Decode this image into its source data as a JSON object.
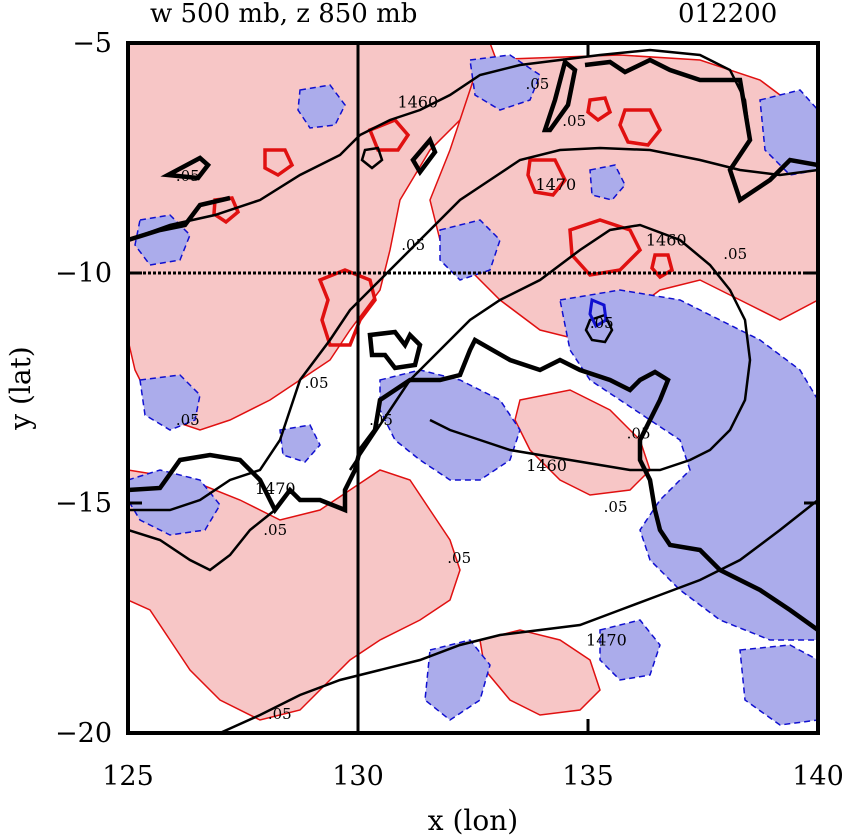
{
  "header": {
    "left_title": "w 500 mb, z 850 mb",
    "right_title": "012200"
  },
  "chart_data": {
    "type": "contour",
    "xlabel": "x (lon)",
    "ylabel": "y (lat)",
    "xlim": [
      125,
      140
    ],
    "ylim": [
      -20,
      -5
    ],
    "x_ticks": [
      125,
      130,
      135,
      140
    ],
    "y_ticks": [
      -5,
      -10,
      -15,
      -20
    ],
    "x_tick_labels": [
      "125",
      "130",
      "135",
      "140"
    ],
    "y_tick_labels": [
      "−5",
      "−10",
      "−15",
      "−20"
    ],
    "reference_lines": {
      "lon": 130,
      "lat": -10
    },
    "colors": {
      "positive_fill": "#f7c6c6",
      "negative_fill": "#abaceb",
      "positive_line": "#e01010",
      "negative_line": "#1010d0",
      "height_line": "#000000"
    },
    "w_contour_labels": [
      {
        "text": ".05",
        "lon": 126.3,
        "lat": -8.0
      },
      {
        "text": ".05",
        "lon": 126.3,
        "lat": -13.3
      },
      {
        "text": ".05",
        "lon": 128.2,
        "lat": -15.7
      },
      {
        "text": ".05",
        "lon": 129.1,
        "lat": -12.5
      },
      {
        "text": ".05",
        "lon": 128.3,
        "lat": -19.7
      },
      {
        "text": ".05",
        "lon": 130.5,
        "lat": -13.3
      },
      {
        "text": ".05",
        "lon": 131.2,
        "lat": -9.5
      },
      {
        "text": ".05",
        "lon": 132.2,
        "lat": -16.3
      },
      {
        "text": ".05",
        "lon": 133.9,
        "lat": -6.0
      },
      {
        "text": ".05",
        "lon": 134.7,
        "lat": -6.8
      },
      {
        "text": ".05",
        "lon": 135.3,
        "lat": -11.2
      },
      {
        "text": ".05",
        "lon": 136.1,
        "lat": -13.6
      },
      {
        "text": ".05",
        "lon": 135.6,
        "lat": -15.2
      },
      {
        "text": ".05",
        "lon": 138.2,
        "lat": -9.7
      }
    ],
    "z_contour_labels": [
      {
        "text": "1460",
        "lon": 131.3,
        "lat": -6.4
      },
      {
        "text": "1470",
        "lon": 134.3,
        "lat": -8.2
      },
      {
        "text": "1460",
        "lon": 136.7,
        "lat": -9.4
      },
      {
        "text": "1460",
        "lon": 134.1,
        "lat": -14.3
      },
      {
        "text": "1470",
        "lon": 128.2,
        "lat": -14.8
      },
      {
        "text": "1470",
        "lon": 135.4,
        "lat": -18.1
      }
    ]
  }
}
